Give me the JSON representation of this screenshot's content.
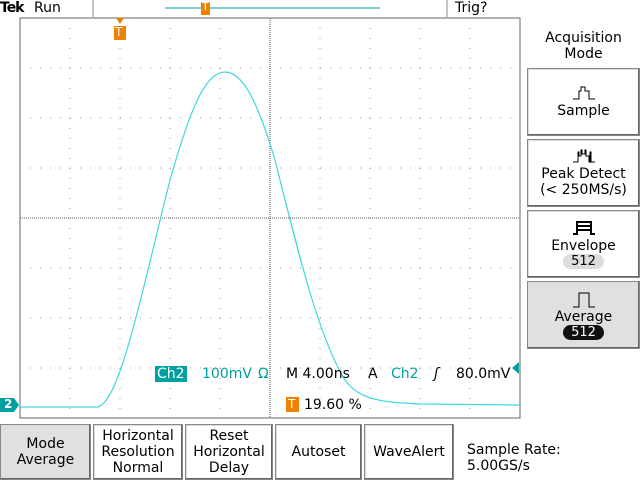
{
  "header": {
    "brand": "Tek",
    "state": "Run",
    "trigger_state": "Trig?",
    "trigger_marker": "T"
  },
  "readout": {
    "channel": "Ch2",
    "volts_per_div": "100mV",
    "impedance": "Ω",
    "timebase": "M 4.00ns",
    "trigger_mode": "A",
    "trigger_source": "Ch2",
    "trigger_slope": "ʃ",
    "trigger_level": "80.0mV",
    "position_marker": "T",
    "position": "19.60 %",
    "ground_marker": "2"
  },
  "side_menu": {
    "title": [
      "Acquisition",
      "Mode"
    ],
    "items": [
      {
        "label": [
          "Sample"
        ]
      },
      {
        "label": [
          "Peak Detect",
          "(< 250MS/s)"
        ]
      },
      {
        "label": [
          "Envelope"
        ],
        "badge": "512"
      },
      {
        "label": [
          "Average"
        ],
        "badge": "512"
      }
    ]
  },
  "bottom_menu": {
    "items": [
      [
        "Mode",
        "Average"
      ],
      [
        "Horizontal",
        "Resolution",
        "Normal"
      ],
      [
        "Reset",
        "Horizontal",
        "Delay"
      ],
      [
        "Autoset"
      ],
      [
        "WaveAlert"
      ]
    ],
    "info": [
      "Sample Rate:",
      "5.00GS/s"
    ]
  }
}
